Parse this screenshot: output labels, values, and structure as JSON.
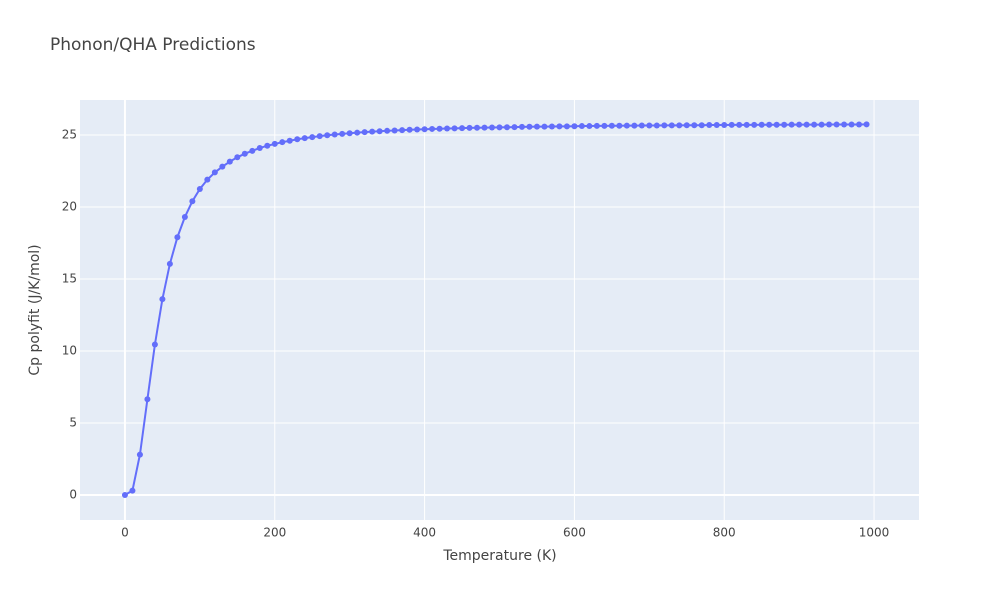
{
  "chart_data": {
    "type": "line",
    "title": "Phonon/QHA Predictions",
    "x_label": "Temperature (K)",
    "y_label": "Cp polyfit (J/K/mol)",
    "x": [
      0,
      10,
      20,
      30,
      40,
      50,
      60,
      70,
      80,
      90,
      100,
      110,
      120,
      130,
      140,
      150,
      160,
      170,
      180,
      190,
      200,
      210,
      220,
      230,
      240,
      250,
      260,
      270,
      280,
      290,
      300,
      310,
      320,
      330,
      340,
      350,
      360,
      370,
      380,
      390,
      400,
      410,
      420,
      430,
      440,
      450,
      460,
      470,
      480,
      490,
      500,
      510,
      520,
      530,
      540,
      550,
      560,
      570,
      580,
      590,
      600,
      610,
      620,
      630,
      640,
      650,
      660,
      670,
      680,
      690,
      700,
      710,
      720,
      730,
      740,
      750,
      760,
      770,
      780,
      790,
      800,
      810,
      820,
      830,
      840,
      850,
      860,
      870,
      880,
      890,
      900,
      910,
      920,
      930,
      940,
      950,
      960,
      970,
      980,
      990
    ],
    "series": [
      {
        "color": "#636efa",
        "values": [
          0,
          0.3,
          2.8,
          6.65,
          10.45,
          13.6,
          16.05,
          17.9,
          19.3,
          20.4,
          21.25,
          21.9,
          22.4,
          22.8,
          23.15,
          23.45,
          23.7,
          23.9,
          24.1,
          24.25,
          24.38,
          24.5,
          24.6,
          24.7,
          24.78,
          24.85,
          24.92,
          24.98,
          25.03,
          25.08,
          25.12,
          25.16,
          25.2,
          25.23,
          25.26,
          25.29,
          25.31,
          25.34,
          25.36,
          25.38,
          25.4,
          25.42,
          25.43,
          25.45,
          25.46,
          25.48,
          25.49,
          25.5,
          25.51,
          25.52,
          25.53,
          25.54,
          25.55,
          25.56,
          25.57,
          25.58,
          25.58,
          25.59,
          25.6,
          25.6,
          25.61,
          25.62,
          25.62,
          25.63,
          25.63,
          25.64,
          25.64,
          25.65,
          25.65,
          25.66,
          25.66,
          25.66,
          25.67,
          25.67,
          25.67,
          25.68,
          25.68,
          25.68,
          25.69,
          25.69,
          25.69,
          25.7,
          25.7,
          25.7,
          25.7,
          25.71,
          25.71,
          25.71,
          25.71,
          25.72,
          25.72,
          25.72,
          25.72,
          25.72,
          25.73,
          25.73,
          25.73,
          25.73,
          25.73,
          25.74
        ]
      }
    ],
    "xlim": [
      -60,
      1060
    ],
    "ylim": [
      -1.74,
      27.43
    ],
    "xticks": [
      0,
      200,
      400,
      600,
      800,
      1000
    ],
    "yticks": [
      0,
      5,
      10,
      15,
      20,
      25
    ],
    "grid": true
  }
}
